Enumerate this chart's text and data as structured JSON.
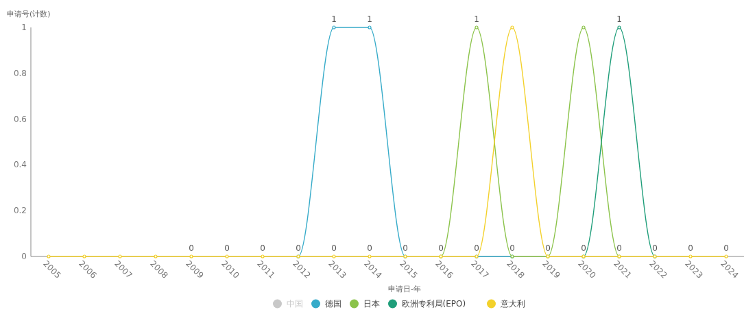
{
  "chart_data": {
    "type": "line",
    "xlabel": "申请日-年",
    "ylabel": "申请号(计数)",
    "categories": [
      "2005",
      "2006",
      "2007",
      "2008",
      "2009",
      "2010",
      "2011",
      "2012",
      "2013",
      "2014",
      "2015",
      "2016",
      "2017",
      "2018",
      "2019",
      "2020",
      "2021",
      "2022",
      "2023",
      "2024"
    ],
    "ylim": [
      0,
      1
    ],
    "yticks": [
      0,
      0.2,
      0.4,
      0.6,
      0.8,
      1
    ],
    "grid": false,
    "legend": "bottom",
    "marker": "circle",
    "line_style": "solid",
    "series": [
      {
        "name": "中国",
        "color": "#c8c8c8",
        "values": [
          null,
          null,
          null,
          null,
          null,
          null,
          null,
          null,
          null,
          null,
          null,
          null,
          null,
          null,
          null,
          null,
          null,
          null,
          null,
          null
        ]
      },
      {
        "name": "德国",
        "color": "#36abc9",
        "values": [
          null,
          null,
          null,
          null,
          null,
          null,
          null,
          0,
          1,
          1,
          0,
          null,
          0,
          0,
          null,
          null,
          null,
          null,
          null,
          null
        ],
        "value_labels": [
          null,
          null,
          null,
          null,
          null,
          null,
          null,
          null,
          "1",
          "1",
          null,
          null,
          null,
          null,
          null,
          null,
          null,
          null,
          null,
          null
        ]
      },
      {
        "name": "日本",
        "color": "#8bc34a",
        "values": [
          null,
          null,
          null,
          null,
          null,
          null,
          null,
          null,
          null,
          null,
          null,
          0,
          1,
          0,
          0,
          1,
          0,
          null,
          null,
          null
        ],
        "value_labels": [
          null,
          null,
          null,
          null,
          null,
          null,
          null,
          null,
          null,
          null,
          null,
          null,
          "1",
          "0",
          null,
          null,
          null,
          null,
          null,
          null
        ]
      },
      {
        "name": "欧洲专利局(EPO)",
        "color": "#1f9e7a",
        "values": [
          null,
          null,
          null,
          null,
          null,
          null,
          null,
          null,
          null,
          null,
          null,
          null,
          null,
          null,
          null,
          0,
          1,
          0,
          null,
          null
        ],
        "value_labels": [
          null,
          null,
          null,
          null,
          null,
          null,
          null,
          null,
          null,
          null,
          null,
          null,
          null,
          null,
          null,
          null,
          "1",
          null,
          null,
          null
        ]
      },
      {
        "name": "意大利",
        "color": "#f3d12b",
        "values": [
          0,
          0,
          0,
          0,
          0,
          0,
          0,
          0,
          0,
          0,
          0,
          0,
          0,
          1,
          0,
          0,
          0,
          0,
          0,
          0
        ],
        "value_labels": [
          null,
          null,
          null,
          null,
          "0",
          "0",
          "0",
          "0",
          "0",
          "0",
          "0",
          "0",
          "0",
          null,
          "0",
          "0",
          "0",
          "0",
          "0",
          "0"
        ]
      }
    ]
  }
}
